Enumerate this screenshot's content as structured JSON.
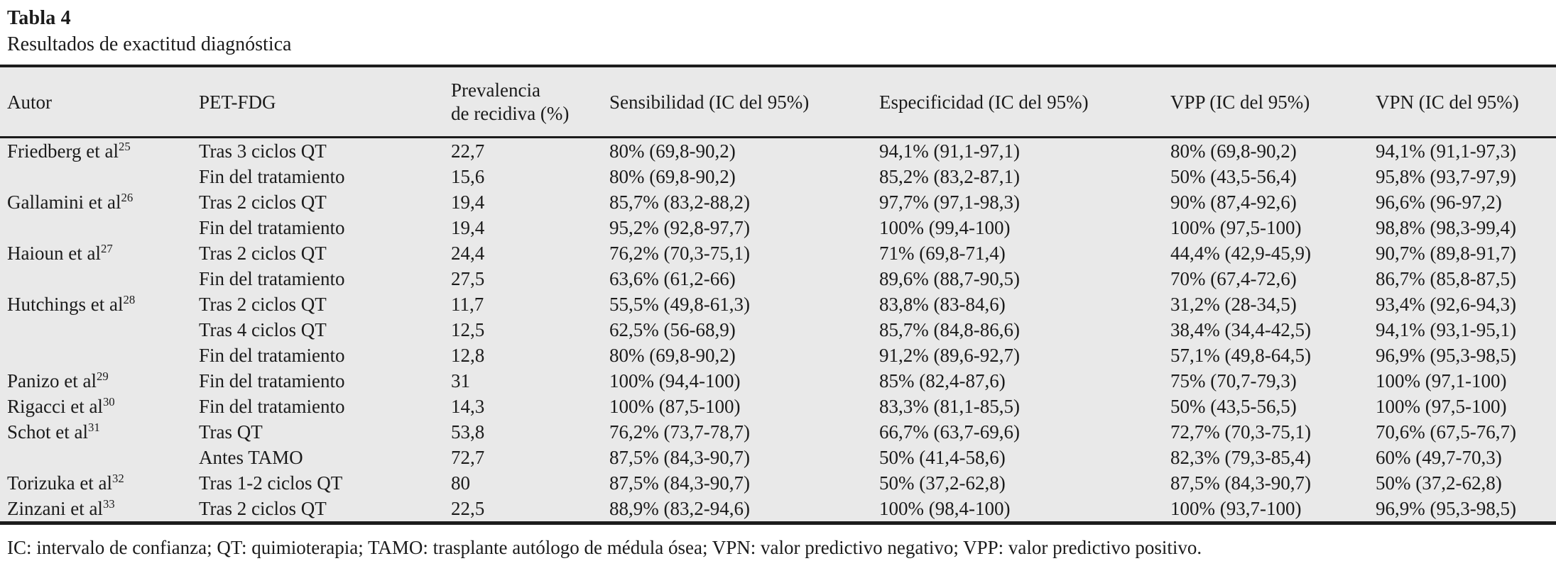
{
  "title": "Tabla 4",
  "subtitle": "Resultados de exactitud diagnóstica",
  "table": {
    "columns": {
      "autor": {
        "label": "Autor"
      },
      "pet": {
        "label": "PET-FDG"
      },
      "prevalencia": {
        "label": "Prevalencia",
        "label2": "de recidiva (%)"
      },
      "sensibilidad": {
        "label": "Sensibilidad (IC del 95%)"
      },
      "especificidad": {
        "label": "Especificidad (IC del 95%)"
      },
      "vpp": {
        "label": "VPP (IC del 95%)"
      },
      "vpn": {
        "label": "VPN (IC del 95%)"
      }
    },
    "rows": [
      {
        "autor": "Friedberg et al",
        "ref": "25",
        "pet": "Tras 3 ciclos QT",
        "prevalencia": "22,7",
        "sens": "80% (69,8-90,2)",
        "espec": "94,1% (91,1-97,1)",
        "vpp": "80% (69,8-90,2)",
        "vpn": "94,1% (91,1-97,3)"
      },
      {
        "autor": "",
        "ref": "",
        "pet": "Fin del tratamiento",
        "prevalencia": "15,6",
        "sens": "80% (69,8-90,2)",
        "espec": "85,2% (83,2-87,1)",
        "vpp": "50% (43,5-56,4)",
        "vpn": "95,8% (93,7-97,9)"
      },
      {
        "autor": "Gallamini et al",
        "ref": "26",
        "pet": "Tras 2 ciclos QT",
        "prevalencia": "19,4",
        "sens": "85,7% (83,2-88,2)",
        "espec": "97,7% (97,1-98,3)",
        "vpp": "90% (87,4-92,6)",
        "vpn": "96,6% (96-97,2)"
      },
      {
        "autor": "",
        "ref": "",
        "pet": "Fin del tratamiento",
        "prevalencia": "19,4",
        "sens": "95,2% (92,8-97,7)",
        "espec": "100% (99,4-100)",
        "vpp": "100% (97,5-100)",
        "vpn": "98,8% (98,3-99,4)"
      },
      {
        "autor": "Haioun et al",
        "ref": "27",
        "pet": "Tras 2 ciclos QT",
        "prevalencia": "24,4",
        "sens": "76,2% (70,3-75,1)",
        "espec": "71% (69,8-71,4)",
        "vpp": "44,4% (42,9-45,9)",
        "vpn": "90,7% (89,8-91,7)"
      },
      {
        "autor": "",
        "ref": "",
        "pet": "Fin del tratamiento",
        "prevalencia": "27,5",
        "sens": "63,6% (61,2-66)",
        "espec": "89,6% (88,7-90,5)",
        "vpp": "70% (67,4-72,6)",
        "vpn": "86,7% (85,8-87,5)"
      },
      {
        "autor": "Hutchings et al",
        "ref": "28",
        "pet": "Tras 2 ciclos QT",
        "prevalencia": "11,7",
        "sens": "55,5% (49,8-61,3)",
        "espec": "83,8% (83-84,6)",
        "vpp": "31,2% (28-34,5)",
        "vpn": "93,4% (92,6-94,3)"
      },
      {
        "autor": "",
        "ref": "",
        "pet": "Tras 4 ciclos QT",
        "prevalencia": "12,5",
        "sens": "62,5% (56-68,9)",
        "espec": "85,7% (84,8-86,6)",
        "vpp": "38,4% (34,4-42,5)",
        "vpn": "94,1% (93,1-95,1)"
      },
      {
        "autor": "",
        "ref": "",
        "pet": "Fin del tratamiento",
        "prevalencia": "12,8",
        "sens": "80% (69,8-90,2)",
        "espec": "91,2% (89,6-92,7)",
        "vpp": "57,1% (49,8-64,5)",
        "vpn": "96,9% (95,3-98,5)"
      },
      {
        "autor": "Panizo et al",
        "ref": "29",
        "pet": "Fin del tratamiento",
        "prevalencia": "31",
        "sens": "100% (94,4-100)",
        "espec": "85% (82,4-87,6)",
        "vpp": "75% (70,7-79,3)",
        "vpn": "100% (97,1-100)"
      },
      {
        "autor": "Rigacci et al",
        "ref": "30",
        "pet": "Fin del tratamiento",
        "prevalencia": "14,3",
        "sens": "100% (87,5-100)",
        "espec": "83,3% (81,1-85,5)",
        "vpp": "50% (43,5-56,5)",
        "vpn": "100% (97,5-100)"
      },
      {
        "autor": "Schot et al",
        "ref": "31",
        "pet": "Tras QT",
        "prevalencia": "53,8",
        "sens": "76,2% (73,7-78,7)",
        "espec": "66,7% (63,7-69,6)",
        "vpp": "72,7% (70,3-75,1)",
        "vpn": "70,6% (67,5-76,7)"
      },
      {
        "autor": "",
        "ref": "",
        "pet": "Antes TAMO",
        "prevalencia": "72,7",
        "sens": "87,5% (84,3-90,7)",
        "espec": "50% (41,4-58,6)",
        "vpp": "82,3% (79,3-85,4)",
        "vpn": "60% (49,7-70,3)"
      },
      {
        "autor": "Torizuka et al",
        "ref": "32",
        "pet": "Tras 1-2 ciclos QT",
        "prevalencia": "80",
        "sens": "87,5% (84,3-90,7)",
        "espec": "50% (37,2-62,8)",
        "vpp": "87,5% (84,3-90,7)",
        "vpn": "50% (37,2-62,8)"
      },
      {
        "autor": "Zinzani et al",
        "ref": "33",
        "pet": "Tras 2 ciclos QT",
        "prevalencia": "22,5",
        "sens": "88,9% (83,2-94,6)",
        "espec": "100% (98,4-100)",
        "vpp": "100% (93,7-100)",
        "vpn": "96,9% (95,3-98,5)"
      }
    ]
  },
  "footnote": "IC: intervalo de confianza; QT: quimioterapia; TAMO: trasplante autólogo de médula ósea; VPN: valor predictivo negativo; VPP: valor predictivo positivo.",
  "colors": {
    "table_background": "#e9e9e9",
    "rule": "#1c1c1c",
    "text": "#1b1b1b",
    "page_background": "#ffffff"
  }
}
